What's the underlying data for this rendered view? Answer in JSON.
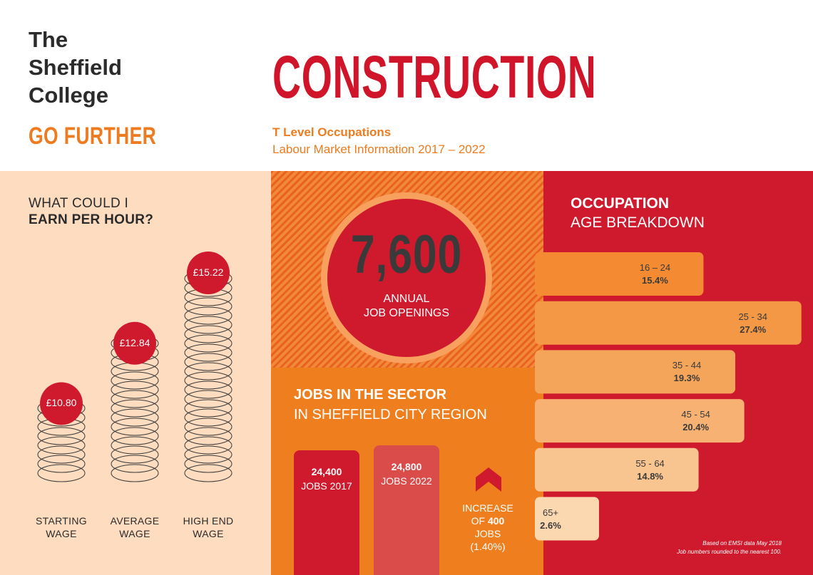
{
  "header": {
    "logo_lines": [
      "The",
      "Sheffield",
      "College"
    ],
    "tagline": "GO FURTHER",
    "title": "CONSTRUCTION",
    "subtitle_bold": "T Level Occupations",
    "subtitle": "Labour Market Information 2017 – 2022"
  },
  "earn": {
    "heading_line1": "WHAT COULD I",
    "heading_line2": "EARN PER HOUR?"
  },
  "openings": {
    "number": "7,600",
    "label_line1": "ANNUAL",
    "label_line2": "JOB OPENINGS"
  },
  "jobs": {
    "heading_line1": "JOBS IN THE SECTOR",
    "heading_line2": "IN SHEFFIELD CITY REGION",
    "increase_line1": "INCREASE",
    "increase_of": "OF",
    "increase_value": "400",
    "increase_line3": "JOBS",
    "increase_line4": "(1.40%)"
  },
  "age": {
    "heading_line1": "OCCUPATION",
    "heading_line2": "AGE BREAKDOWN"
  },
  "footnote": {
    "line1": "Based on EMSI data May 2018",
    "line2": "Job numbers rounded to the nearest 100."
  },
  "colors": {
    "red": "#cf1a2e",
    "orange": "#ef7f1e",
    "peach": "#fddcc0",
    "dark_text": "#2b2b2b"
  },
  "chart_data": [
    {
      "type": "bar",
      "categories": [
        "STARTING WAGE",
        "AVERAGE WAGE",
        "HIGH END WAGE"
      ],
      "category_lines": [
        [
          "STARTING",
          "WAGE"
        ],
        [
          "AVERAGE",
          "WAGE"
        ],
        [
          "HIGH END",
          "WAGE"
        ]
      ],
      "values": [
        10.8,
        12.84,
        15.22
      ],
      "value_labels": [
        "£10.80",
        "£12.84",
        "£15.22"
      ]
    },
    {
      "type": "bar",
      "categories": [
        "JOBS 2017",
        "JOBS 2022"
      ],
      "values": [
        24400,
        24800
      ],
      "value_labels": [
        "24,400",
        "24,800"
      ]
    },
    {
      "type": "bar",
      "orientation": "horizontal",
      "categories": [
        "16 – 24",
        "25 - 34",
        "35 - 44",
        "45 - 54",
        "55 - 64",
        "65+"
      ],
      "values": [
        15.4,
        27.4,
        19.3,
        20.4,
        14.8,
        2.6
      ],
      "value_labels": [
        "15.4%",
        "27.4%",
        "19.3%",
        "20.4%",
        "14.8%",
        "2.6%"
      ]
    }
  ]
}
